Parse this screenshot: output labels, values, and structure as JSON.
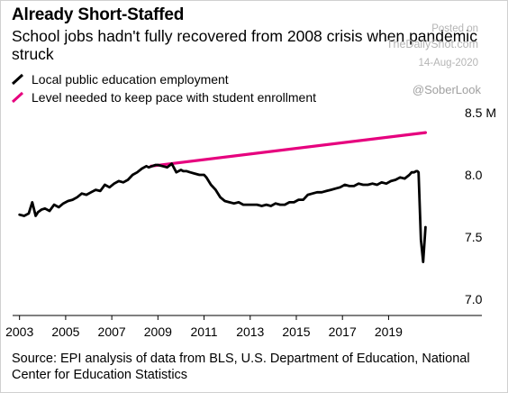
{
  "title": "Already Short-Staffed",
  "subtitle": "School jobs hadn't fully recovered from 2008 crisis when pandemic struck",
  "watermark": {
    "line1": "Posted on",
    "line2": "TheDailyShot.com",
    "date": "14-Aug-2020",
    "handle": "@SoberLook"
  },
  "source": "Source: EPI analysis of data from BLS, U.S. Department of Education, National Center for Education Statistics",
  "colors": {
    "employment": "#000000",
    "enrollment": "#e6007e"
  },
  "chart_data": {
    "type": "line",
    "title": "Already Short-Staffed",
    "xlabel": "",
    "ylabel": "",
    "x_range": [
      2002.7,
      2021.6
    ],
    "ylim": [
      7.0,
      8.5
    ],
    "y_ticks": [
      {
        "value": 8.5,
        "label": "8.5 M"
      },
      {
        "value": 8.0,
        "label": "8.0"
      },
      {
        "value": 7.5,
        "label": "7.5"
      },
      {
        "value": 7.0,
        "label": "7.0"
      }
    ],
    "x_ticks": [
      {
        "value": 2003,
        "label": "2003"
      },
      {
        "value": 2005,
        "label": "2005"
      },
      {
        "value": 2007,
        "label": "2007"
      },
      {
        "value": 2009,
        "label": "2009"
      },
      {
        "value": 2011,
        "label": "2011"
      },
      {
        "value": 2013,
        "label": "2013"
      },
      {
        "value": 2015,
        "label": "2015"
      },
      {
        "value": 2017,
        "label": "2017"
      },
      {
        "value": 2019,
        "label": "2019"
      }
    ],
    "series": [
      {
        "name": "Local public education employment",
        "color": "#000000",
        "x": [
          2003.0,
          2003.2,
          2003.4,
          2003.55,
          2003.7,
          2003.8,
          2003.95,
          2004.1,
          2004.3,
          2004.5,
          2004.7,
          2004.9,
          2005.1,
          2005.3,
          2005.5,
          2005.7,
          2005.9,
          2006.1,
          2006.3,
          2006.5,
          2006.7,
          2006.9,
          2007.1,
          2007.3,
          2007.5,
          2007.7,
          2007.9,
          2008.1,
          2008.3,
          2008.5,
          2008.6,
          2008.75,
          2008.9,
          2009.0,
          2009.2,
          2009.4,
          2009.6,
          2009.8,
          2010.0,
          2010.1,
          2010.25,
          2010.4,
          2010.6,
          2010.8,
          2011.0,
          2011.1,
          2011.3,
          2011.5,
          2011.7,
          2011.9,
          2012.1,
          2012.3,
          2012.5,
          2012.7,
          2012.9,
          2013.1,
          2013.3,
          2013.5,
          2013.7,
          2013.9,
          2014.1,
          2014.3,
          2014.5,
          2014.7,
          2014.9,
          2015.1,
          2015.3,
          2015.5,
          2015.7,
          2015.9,
          2016.1,
          2016.3,
          2016.5,
          2016.7,
          2016.9,
          2017.1,
          2017.3,
          2017.5,
          2017.7,
          2017.9,
          2018.1,
          2018.3,
          2018.5,
          2018.7,
          2018.9,
          2019.1,
          2019.3,
          2019.5,
          2019.7,
          2019.9,
          2020.0,
          2020.1,
          2020.2,
          2020.25,
          2020.3,
          2020.4,
          2020.5,
          2020.6
        ],
        "values": [
          7.68,
          7.67,
          7.69,
          7.78,
          7.67,
          7.7,
          7.72,
          7.73,
          7.71,
          7.76,
          7.74,
          7.77,
          7.79,
          7.8,
          7.82,
          7.85,
          7.84,
          7.86,
          7.88,
          7.87,
          7.92,
          7.9,
          7.93,
          7.95,
          7.94,
          7.96,
          8.0,
          8.02,
          8.05,
          8.07,
          8.06,
          8.07,
          8.08,
          8.08,
          8.07,
          8.06,
          8.09,
          8.02,
          8.04,
          8.03,
          8.03,
          8.02,
          8.01,
          8.0,
          8.0,
          7.98,
          7.92,
          7.88,
          7.82,
          7.79,
          7.78,
          7.77,
          7.78,
          7.76,
          7.76,
          7.76,
          7.76,
          7.75,
          7.76,
          7.75,
          7.77,
          7.76,
          7.76,
          7.78,
          7.78,
          7.8,
          7.8,
          7.84,
          7.85,
          7.86,
          7.86,
          7.87,
          7.88,
          7.89,
          7.9,
          7.92,
          7.91,
          7.91,
          7.93,
          7.92,
          7.92,
          7.93,
          7.92,
          7.94,
          7.93,
          7.95,
          7.96,
          7.98,
          7.97,
          8.0,
          8.02,
          8.02,
          8.03,
          8.03,
          8.02,
          7.48,
          7.3,
          7.58
        ]
      },
      {
        "name": "Level needed to keep pace with student enrollment",
        "color": "#e6007e",
        "x": [
          2008.7,
          2020.6
        ],
        "values": [
          8.07,
          8.34
        ]
      }
    ],
    "grid": false,
    "legend": "top-left"
  }
}
